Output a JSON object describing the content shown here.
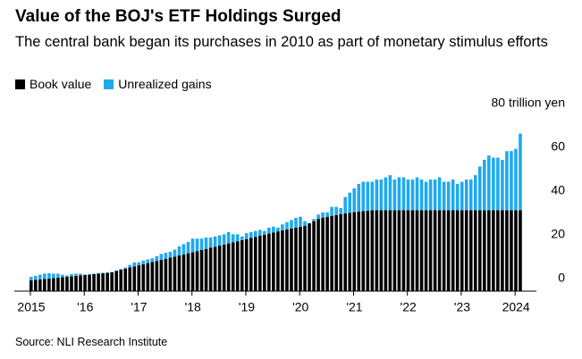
{
  "chart_data": {
    "type": "stacked-bar",
    "title": "Value of the BOJ's ETF Holdings Surged",
    "subtitle": "The central bank began its purchases in 2010 as part of monetary stimulus efforts",
    "source": "Source: NLI Research Institute",
    "categories": [
      "2015",
      null,
      null,
      null,
      null,
      null,
      null,
      null,
      null,
      null,
      null,
      null,
      "'16",
      null,
      null,
      null,
      null,
      null,
      null,
      null,
      null,
      null,
      null,
      null,
      "'17",
      null,
      null,
      null,
      null,
      null,
      null,
      null,
      null,
      null,
      null,
      null,
      "'18",
      null,
      null,
      null,
      null,
      null,
      null,
      null,
      null,
      null,
      null,
      null,
      "'19",
      null,
      null,
      null,
      null,
      null,
      null,
      null,
      null,
      null,
      null,
      null,
      "'20",
      null,
      null,
      null,
      null,
      null,
      null,
      null,
      null,
      null,
      null,
      null,
      "'21",
      null,
      null,
      null,
      null,
      null,
      null,
      null,
      null,
      null,
      null,
      null,
      "'22",
      null,
      null,
      null,
      null,
      null,
      null,
      null,
      null,
      null,
      null,
      null,
      "'23",
      null,
      null,
      null,
      null,
      null,
      null,
      null,
      null,
      null,
      null,
      null,
      "2024",
      null
    ],
    "series": [
      {
        "name": "Book value",
        "color": "#000000",
        "values": [
          5.0,
          5.2,
          5.4,
          5.6,
          5.8,
          6.0,
          6.2,
          6.4,
          6.6,
          6.8,
          7.0,
          7.2,
          7.4,
          7.6,
          7.8,
          8.0,
          8.2,
          8.4,
          8.6,
          9.2,
          9.8,
          10.3,
          10.8,
          11.3,
          11.8,
          12.3,
          12.8,
          13.3,
          13.8,
          14.3,
          14.8,
          15.3,
          15.8,
          16.3,
          16.8,
          17.3,
          17.8,
          18.3,
          18.8,
          19.3,
          19.8,
          20.3,
          20.8,
          21.3,
          21.8,
          22.3,
          22.8,
          23.3,
          23.8,
          24.3,
          24.8,
          25.3,
          25.8,
          26.3,
          26.8,
          27.3,
          27.8,
          28.2,
          28.6,
          29.0,
          29.4,
          29.8,
          31.0,
          32.0,
          33.0,
          33.6,
          34.0,
          34.4,
          34.8,
          35.2,
          35.5,
          35.8,
          36.1,
          36.4,
          36.6,
          36.8,
          37,
          37,
          37,
          37,
          37,
          37,
          37,
          37,
          37,
          37,
          37,
          37,
          37,
          37,
          37,
          37,
          37,
          37,
          37,
          37,
          37,
          37,
          37,
          37,
          37,
          37,
          37,
          37,
          37,
          37,
          37,
          37,
          37,
          37
        ]
      },
      {
        "name": "Unrealized gains",
        "color": "#1fa9ef",
        "values": [
          1.5,
          1.8,
          2.1,
          2.4,
          2.4,
          2.0,
          1.8,
          1.1,
          0.6,
          1.0,
          1.0,
          0.8,
          0.2,
          0.1,
          0.2,
          0.3,
          0.2,
          0.1,
          0.2,
          0.3,
          0.3,
          0.5,
          1.2,
          1.8,
          1.4,
          1.7,
          1.7,
          1.7,
          2.2,
          2.7,
          2.7,
          2.7,
          3.2,
          4.2,
          4.7,
          5.2,
          6.2,
          5.7,
          5.2,
          5.2,
          4.7,
          4.7,
          4.7,
          4.7,
          5.2,
          3.7,
          3.2,
          1.7,
          2.7,
          2.7,
          2.7,
          2.7,
          1.7,
          2.7,
          2.7,
          1.7,
          2.7,
          3.3,
          3.9,
          4.5,
          4.6,
          2.2,
          0,
          1,
          2,
          2.4,
          2,
          4.1,
          3.7,
          2.8,
          7.5,
          9.2,
          10.9,
          12.6,
          13.4,
          13.2,
          13,
          14,
          14,
          15,
          16,
          14,
          15,
          15,
          14,
          14,
          15,
          14,
          13,
          14,
          14,
          15,
          13,
          13,
          14,
          12,
          13,
          14,
          14,
          16,
          20,
          23,
          25,
          24,
          24,
          23,
          27,
          27,
          28,
          35
        ]
      }
    ],
    "ylim": [
      0,
      80
    ],
    "yticks": [
      0,
      20,
      40,
      60,
      {
        "value": 80,
        "label": "80 trillion yen"
      }
    ]
  }
}
